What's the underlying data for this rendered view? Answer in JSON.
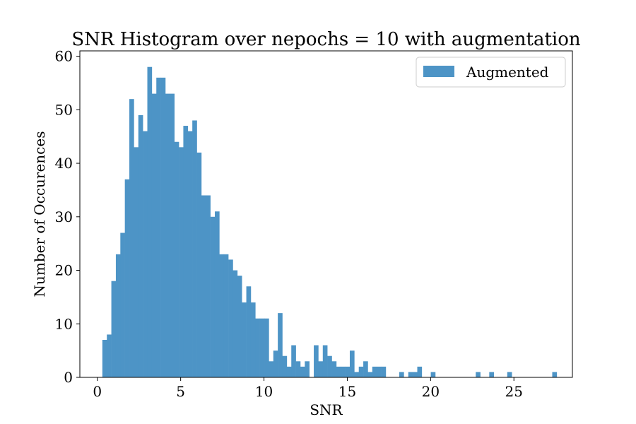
{
  "chart_data": {
    "type": "histogram",
    "title": "SNR Histogram over nepochs = 10 with augmentation",
    "xlabel": "SNR",
    "ylabel": "Number of Occurences",
    "xlim": [
      -1.05,
      28.51
    ],
    "ylim": [
      0,
      61
    ],
    "xticks": [
      0,
      5,
      10,
      15,
      20,
      25
    ],
    "yticks": [
      0,
      10,
      20,
      30,
      40,
      50,
      60
    ],
    "grid": false,
    "legend_position": "top-right",
    "series": [
      {
        "name": "Augmented",
        "color": "#4d94c6",
        "bin_start": 0.3,
        "bin_width": 0.27,
        "counts": [
          7,
          8,
          18,
          23,
          27,
          37,
          52,
          43,
          49,
          46,
          58,
          53,
          56,
          56,
          53,
          53,
          44,
          43,
          47,
          46,
          48,
          42,
          34,
          34,
          30,
          31,
          23,
          23,
          22,
          20,
          19,
          14,
          17,
          14,
          11,
          11,
          11,
          3,
          5,
          12,
          4,
          2,
          6,
          3,
          2,
          3,
          0,
          6,
          3,
          6,
          4,
          3,
          2,
          2,
          2,
          5,
          1,
          2,
          3,
          1,
          2,
          2,
          2,
          0,
          0,
          0,
          1,
          0,
          1,
          1,
          2,
          0,
          0,
          1,
          0,
          0,
          0,
          0,
          0,
          0,
          0,
          0,
          0,
          1,
          0,
          0,
          1,
          0,
          0,
          0,
          1,
          0,
          0,
          0,
          0,
          0,
          0,
          0,
          0,
          0,
          1
        ]
      }
    ]
  }
}
